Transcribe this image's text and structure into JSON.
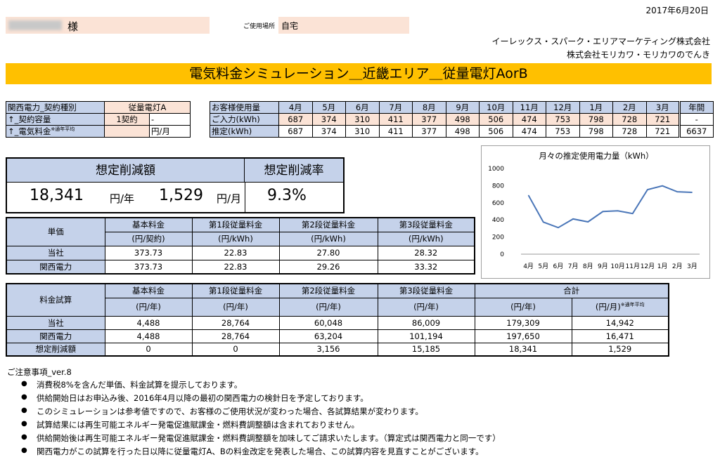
{
  "date": "2017年6月20日",
  "customer": {
    "name_suffix": "様"
  },
  "location": {
    "label": "ご使用場所",
    "value": "自宅"
  },
  "company": {
    "line1": "イーレックス・スパーク・エリアマーケティング株式会社",
    "line2": "株式会社モリカワ・モリカワのでんき"
  },
  "title": "電気料金シミュレーション＿近畿エリア＿従量電灯AorB",
  "contract": {
    "rows": [
      {
        "label": "関西電力_契約種別",
        "value": "従量電灯A",
        "extra": ""
      },
      {
        "label": "↑_契約容量",
        "value": "1契約",
        "extra": "-"
      },
      {
        "label": "↑_電気料金",
        "note": "※通年平均",
        "value": "",
        "extra": "円/月"
      }
    ]
  },
  "usage": {
    "header_label": "お客様使用量",
    "months": [
      "4月",
      "5月",
      "6月",
      "7月",
      "8月",
      "9月",
      "10月",
      "11月",
      "12月",
      "1月",
      "2月",
      "3月",
      "年間"
    ],
    "input_label": "ご入力(kWh)",
    "input": [
      "687",
      "374",
      "310",
      "411",
      "377",
      "498",
      "506",
      "474",
      "753",
      "798",
      "728",
      "721",
      "-"
    ],
    "estimate_label": "推定(kWh)",
    "estimate": [
      "687",
      "374",
      "310",
      "411",
      "377",
      "498",
      "506",
      "474",
      "753",
      "798",
      "728",
      "721",
      "6637"
    ]
  },
  "savings": {
    "amount_label": "想定削減額",
    "rate_label": "想定削減率",
    "yearly": "18,341",
    "yearly_unit": "円/年",
    "monthly": "1,529",
    "monthly_unit": "円/月",
    "rate": "9.3%"
  },
  "unit_price": {
    "label": "単価",
    "headers": [
      "基本料金",
      "第1段従量料金",
      "第2段従量料金",
      "第3段従量料金"
    ],
    "units": [
      "(円/契約)",
      "(円/kWh)",
      "(円/kWh)",
      "(円/kWh)"
    ],
    "rows": [
      {
        "label": "当社",
        "values": [
          "373.73",
          "22.83",
          "27.80",
          "28.32"
        ]
      },
      {
        "label": "関西電力",
        "values": [
          "373.73",
          "22.83",
          "29.26",
          "33.32"
        ]
      }
    ]
  },
  "trial": {
    "label": "料金試算",
    "headers": [
      "基本料金",
      "第1段従量料金",
      "第2段従量料金",
      "第3段従量料金",
      "合計"
    ],
    "units": [
      "(円/年)",
      "(円/年)",
      "(円/年)",
      "(円/年)",
      "(円/年)",
      "(円/月)"
    ],
    "note": "※通年平均",
    "rows": [
      {
        "label": "当社",
        "values": [
          "4,488",
          "28,764",
          "60,048",
          "86,009",
          "179,309",
          "14,942"
        ]
      },
      {
        "label": "関西電力",
        "values": [
          "4,488",
          "28,764",
          "63,204",
          "101,194",
          "197,650",
          "16,471"
        ]
      },
      {
        "label": "想定削減額",
        "values": [
          "0",
          "0",
          "3,156",
          "15,185",
          "18,341",
          "1,529"
        ]
      }
    ]
  },
  "notes": {
    "title": "ご注意事項_ver.8",
    "items": [
      "消費税8%を含んだ単価、料金試算を提示しております。",
      "供給開始日はお申込み後、2016年4月以降の最初の関西電力の検針日を予定しております。",
      "このシミュレーションは参考値ですので、お客様のご使用状況が変わった場合、各試算結果が変わります。",
      "試算結果には再生可能エネルギー発電促進賦課金・燃料費調整額は含まれておりません。",
      "供給開始後は再生可能エネルギー発電促進賦課金・燃料費調整額を加味してご請求いたします。（算定式は関西電力と同一です）",
      "関西電力がこの試算を行った日以降に従量電灯A、Bの料金改定を発表した場合、この試算内容を見直すことがございます。"
    ]
  },
  "chart_data": {
    "type": "line",
    "title": "月々の推定使用電力量（kWh）",
    "categories": [
      "4月",
      "5月",
      "6月",
      "7月",
      "8月",
      "9月",
      "10月",
      "11月",
      "12月",
      "1月",
      "2月",
      "3月"
    ],
    "values": [
      687,
      374,
      310,
      411,
      377,
      498,
      506,
      474,
      753,
      798,
      728,
      721
    ],
    "yticks": [
      "0",
      "200",
      "400",
      "600",
      "800",
      "1000"
    ],
    "ylim": [
      0,
      1000
    ],
    "grid": false,
    "line_color": "#4a76b8"
  }
}
